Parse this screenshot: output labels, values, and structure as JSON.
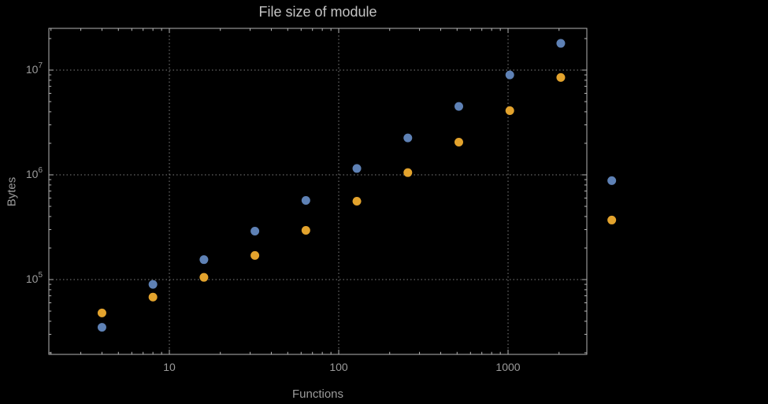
{
  "chart_data": {
    "type": "scatter",
    "title": "File size of module",
    "xlabel": "Functions",
    "ylabel": "Bytes",
    "x_scale": "log",
    "y_scale": "log",
    "x_ticks": [
      10,
      100,
      1000
    ],
    "y_tick_exponents": [
      5,
      6,
      7
    ],
    "x_range_decades": [
      0.289,
      3.465
    ],
    "y_range_decades": [
      4.29,
      7.4
    ],
    "grid": "dotted",
    "legend_position": "none",
    "x": [
      4,
      8,
      16,
      32,
      64,
      128,
      256,
      512,
      1024,
      2048,
      4096
    ],
    "series": [
      {
        "name": "series-blue",
        "color": "#5E81B5",
        "values": [
          35000,
          90000,
          155000,
          290000,
          570000,
          1150000,
          2250000,
          4500000,
          9000000,
          18000000,
          880000
        ]
      },
      {
        "name": "series-orange",
        "color": "#E3A32D",
        "values": [
          48000,
          68000,
          105000,
          170000,
          295000,
          560000,
          1050000,
          2050000,
          4100000,
          8500000,
          370000
        ]
      }
    ],
    "style": {
      "background": "#000000",
      "frame_color": "#b5b5b5",
      "grid_color": "#7f7f7f",
      "tick_label_color": "#9b9b9b",
      "title_color": "#c3c3c3",
      "marker_radius": 5.5
    }
  }
}
